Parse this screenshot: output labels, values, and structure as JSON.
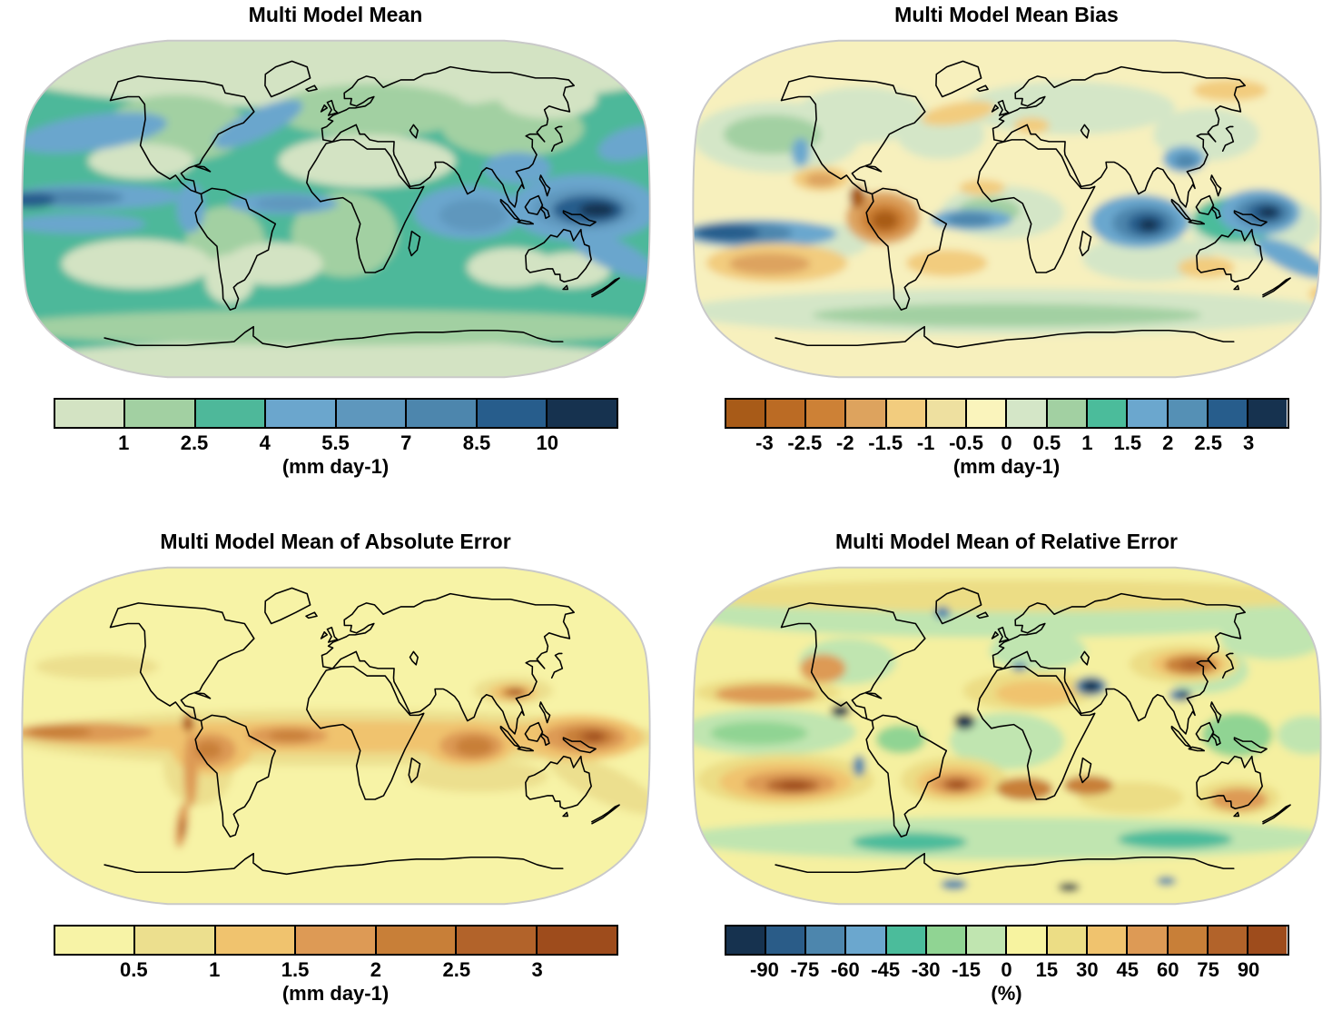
{
  "chart_data": [
    {
      "type": "heatmap",
      "subtype": "filled-contour world map",
      "projection": "Robinson",
      "title": "Multi Model Mean",
      "unit_label": "(mm day-1)",
      "legend_position": "bottom",
      "tick_labels": [
        "1",
        "2.5",
        "4",
        "5.5",
        "7",
        "8.5",
        "10"
      ],
      "levels": [
        1,
        2.5,
        4,
        5.5,
        7,
        8.5,
        10
      ],
      "palette": [
        "#d3e3c3",
        "#a2d0a2",
        "#4eb89a",
        "#6ba6cd",
        "#5e97bd",
        "#4d86ad",
        "#275d8c",
        "#16324f"
      ]
    },
    {
      "type": "heatmap",
      "subtype": "filled-contour world map",
      "projection": "Robinson",
      "title": "Multi Model Mean Bias",
      "unit_label": "(mm day-1)",
      "legend_position": "bottom",
      "tick_labels": [
        "-3",
        "-2.5",
        "-2",
        "-1.5",
        "-1",
        "-0.5",
        "0",
        "0.5",
        "1",
        "1.5",
        "2",
        "2.5",
        "3"
      ],
      "levels": [
        -3,
        -2.5,
        -2,
        -1.5,
        -1,
        -0.5,
        0,
        0.5,
        1,
        1.5,
        2,
        2.5,
        3
      ],
      "palette": [
        "#a85b18",
        "#bb6b24",
        "#cd8136",
        "#dda35e",
        "#f2cc7e",
        "#eee0a0",
        "#faf4bc",
        "#d4e6c7",
        "#a2d0a2",
        "#4bbc9b",
        "#6ba7ce",
        "#5590b5",
        "#275d8c",
        "#16324f"
      ]
    },
    {
      "type": "heatmap",
      "subtype": "filled-contour world map",
      "projection": "Robinson",
      "title": "Multi Model Mean of Absolute Error",
      "unit_label": "(mm day-1)",
      "legend_position": "bottom",
      "tick_labels": [
        "0.5",
        "1",
        "1.5",
        "2",
        "2.5",
        "3"
      ],
      "levels": [
        0.5,
        1,
        1.5,
        2,
        2.5,
        3
      ],
      "palette": [
        "#f7f3a6",
        "#ecdf8e",
        "#f0c36e",
        "#dd9a55",
        "#c87f38",
        "#b2632a",
        "#9e4c1c"
      ]
    },
    {
      "type": "heatmap",
      "subtype": "filled-contour world map",
      "projection": "Robinson",
      "title": "Multi Model Mean of Relative Error",
      "unit_label": "(%)",
      "legend_position": "bottom",
      "tick_labels": [
        "-90",
        "-75",
        "-60",
        "-45",
        "-30",
        "-15",
        "0",
        "15",
        "30",
        "45",
        "60",
        "75",
        "90"
      ],
      "levels": [
        -90,
        -75,
        -60,
        -45,
        -30,
        -15,
        0,
        15,
        30,
        45,
        60,
        75,
        90
      ],
      "palette": [
        "#16324f",
        "#2a5c88",
        "#4d86ad",
        "#6ba7ce",
        "#4bbc9b",
        "#90d493",
        "#c0e5b0",
        "#f7f3a0",
        "#ecdd85",
        "#f0c36e",
        "#dd9a55",
        "#c87f38",
        "#b2632a",
        "#9e4c1c"
      ]
    }
  ]
}
